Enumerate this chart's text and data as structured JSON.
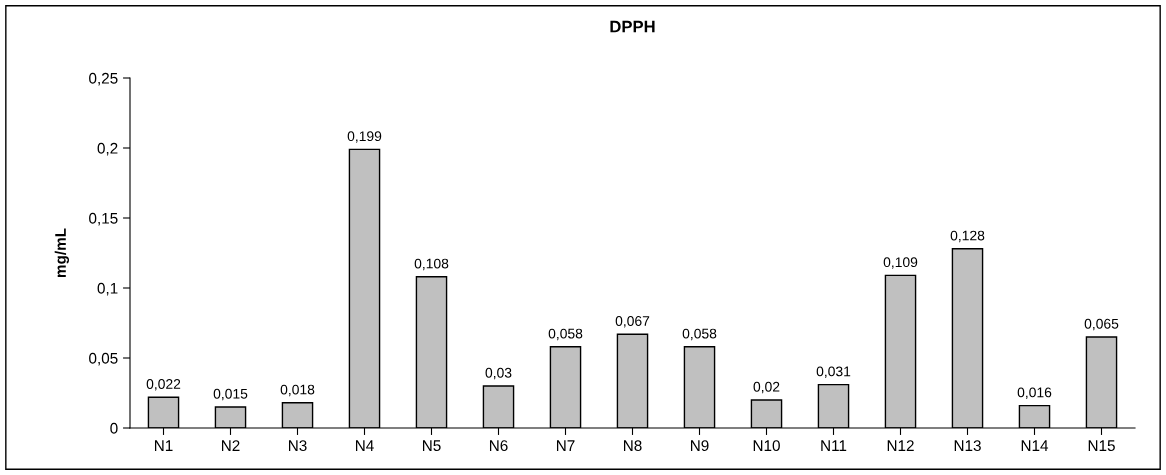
{
  "chart_data": {
    "type": "bar",
    "title": "DPPH",
    "ylabel": "mg/mL",
    "categories": [
      "N1",
      "N2",
      "N3",
      "N4",
      "N5",
      "N6",
      "N7",
      "N8",
      "N9",
      "N10",
      "N11",
      "N12",
      "N13",
      "N14",
      "N15"
    ],
    "values": [
      0.022,
      0.015,
      0.018,
      0.199,
      0.108,
      0.03,
      0.058,
      0.067,
      0.058,
      0.02,
      0.031,
      0.109,
      0.128,
      0.016,
      0.065
    ],
    "value_labels": [
      "0,022",
      "0,015",
      "0,018",
      "0,199",
      "0,108",
      "0,03",
      "0,058",
      "0,067",
      "0,058",
      "0,02",
      "0,031",
      "0,109",
      "0,128",
      "0,016",
      "0,065"
    ],
    "color": "#c0c0c0",
    "ylim": [
      0,
      0.25
    ],
    "yticks": [
      0,
      {
        "value": 0.05,
        "label": "0,05"
      },
      {
        "value": 0.1,
        "label": "0,1"
      },
      {
        "value": 0.15,
        "label": "0,15"
      },
      {
        "value": 0.2,
        "label": "0,2"
      },
      {
        "value": 0.25,
        "label": "0,25"
      }
    ],
    "grid": false,
    "legend": false
  }
}
